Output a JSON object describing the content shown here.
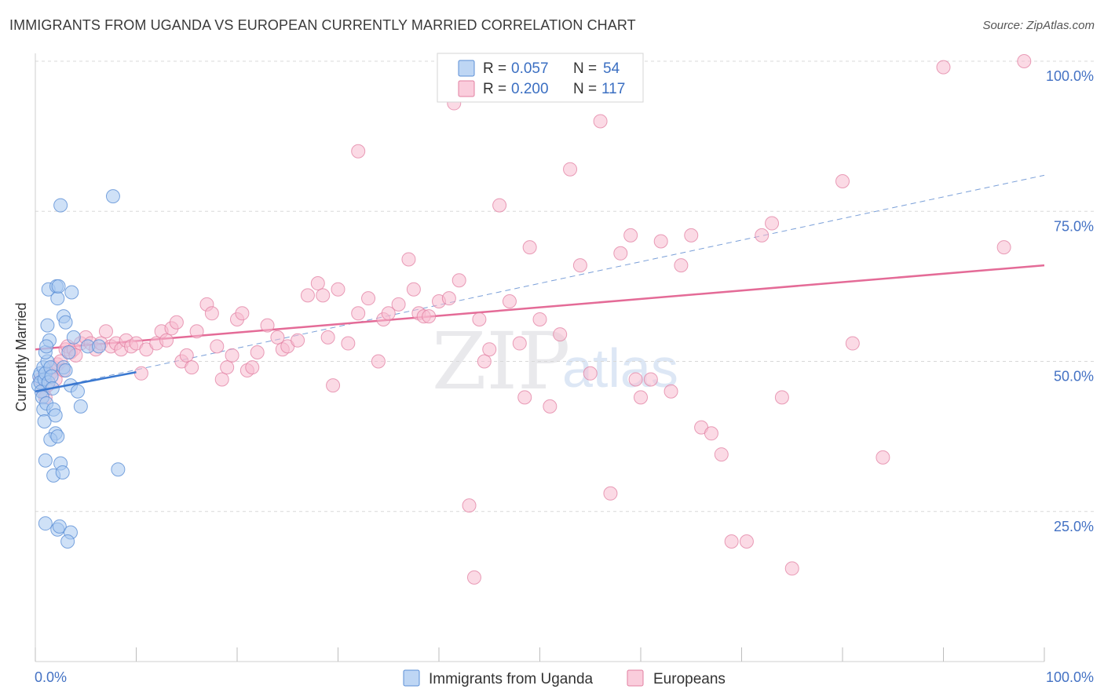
{
  "header": {
    "title": "IMMIGRANTS FROM UGANDA VS EUROPEAN CURRENTLY MARRIED CORRELATION CHART",
    "source": "Source: ZipAtlas.com"
  },
  "watermark": {
    "zip": "ZIP",
    "atlas": "atlas"
  },
  "colors": {
    "uganda_fill": "#a8c8f0",
    "uganda_stroke": "#5b8fd6",
    "uganda_line": "#3a78d0",
    "europe_fill": "#f8bcd0",
    "europe_stroke": "#e27fa1",
    "europe_line": "#e46b97",
    "dashed_line": "#7a9fd8",
    "grid": "#d8d8d8",
    "tick_text": "#4472c4"
  },
  "stats_box": {
    "rows": [
      {
        "r_label": "R = ",
        "r_value": "0.057",
        "n_label": "N = ",
        "n_value": "54"
      },
      {
        "r_label": "R = ",
        "r_value": "0.200",
        "n_label": "N = ",
        "n_value": "117"
      }
    ]
  },
  "chart_data": {
    "type": "scatter",
    "title": "IMMIGRANTS FROM UGANDA VS EUROPEAN CURRENTLY MARRIED CORRELATION CHART",
    "xlabel": "",
    "ylabel": "Currently Married",
    "xlim": [
      0,
      100
    ],
    "ylim": [
      0,
      100
    ],
    "x_tick_labels": [
      "0.0%",
      "100.0%"
    ],
    "y_ticks": [
      25,
      50,
      75,
      100
    ],
    "y_tick_labels": [
      "25.0%",
      "50.0%",
      "75.0%",
      "100.0%"
    ],
    "grid": true,
    "legend": [
      "Immigrants from Uganda",
      "Europeans"
    ],
    "series": [
      {
        "name": "Immigrants from Uganda",
        "r": 0.057,
        "n": 54,
        "trend": {
          "x": [
            0,
            10
          ],
          "y": [
            45.0,
            48.2
          ]
        },
        "trend_extended": {
          "x": [
            0,
            100
          ],
          "y": [
            45.0,
            81.0
          ]
        },
        "points": [
          [
            0.3,
            46
          ],
          [
            0.4,
            47.5
          ],
          [
            0.5,
            48
          ],
          [
            0.5,
            46.5
          ],
          [
            0.6,
            45
          ],
          [
            0.7,
            44
          ],
          [
            0.8,
            49
          ],
          [
            0.9,
            47
          ],
          [
            1.0,
            48
          ],
          [
            1.2,
            50
          ],
          [
            1.0,
            51.5
          ],
          [
            0.8,
            42
          ],
          [
            0.9,
            40
          ],
          [
            1.1,
            43
          ],
          [
            1.3,
            46.5
          ],
          [
            1.4,
            53.5
          ],
          [
            1.1,
            52.5
          ],
          [
            1.2,
            56
          ],
          [
            1.3,
            62
          ],
          [
            1.5,
            49
          ],
          [
            1.6,
            47.5
          ],
          [
            1.7,
            45.5
          ],
          [
            1.8,
            42
          ],
          [
            2.0,
            38
          ],
          [
            1.5,
            37
          ],
          [
            2.2,
            37.5
          ],
          [
            1.8,
            31
          ],
          [
            2.5,
            33
          ],
          [
            2.7,
            31.5
          ],
          [
            1.0,
            33.5
          ],
          [
            1.0,
            23
          ],
          [
            2.2,
            22
          ],
          [
            2.4,
            22.5
          ],
          [
            3.5,
            21.5
          ],
          [
            3.2,
            20
          ],
          [
            2.0,
            41
          ],
          [
            2.1,
            62.5
          ],
          [
            2.2,
            60.5
          ],
          [
            2.3,
            62.5
          ],
          [
            2.8,
            57.5
          ],
          [
            3.0,
            56.5
          ],
          [
            3.3,
            51.5
          ],
          [
            3.5,
            46
          ],
          [
            3.6,
            61.5
          ],
          [
            3.8,
            54
          ],
          [
            4.2,
            45
          ],
          [
            4.5,
            42.5
          ],
          [
            2.5,
            76
          ],
          [
            7.7,
            77.5
          ],
          [
            8.2,
            32
          ],
          [
            5.2,
            52.5
          ],
          [
            6.3,
            52.5
          ],
          [
            2.8,
            49
          ],
          [
            3.0,
            48.5
          ]
        ]
      },
      {
        "name": "Europeans",
        "r": 0.2,
        "n": 117,
        "trend": {
          "x": [
            0,
            100
          ],
          "y": [
            52.0,
            66.0
          ]
        },
        "points": [
          [
            0.5,
            47
          ],
          [
            0.8,
            45
          ],
          [
            1.0,
            44
          ],
          [
            1.2,
            46
          ],
          [
            1.5,
            48
          ],
          [
            1.8,
            49
          ],
          [
            2.0,
            47
          ],
          [
            2.2,
            49.5
          ],
          [
            2.5,
            50
          ],
          [
            2.8,
            48.5
          ],
          [
            3.0,
            52
          ],
          [
            3.2,
            52.5
          ],
          [
            3.5,
            51.5
          ],
          [
            3.8,
            52
          ],
          [
            4.0,
            51
          ],
          [
            4.5,
            53
          ],
          [
            5.0,
            54
          ],
          [
            5.5,
            53
          ],
          [
            6.0,
            52
          ],
          [
            6.5,
            53
          ],
          [
            7.0,
            55
          ],
          [
            7.5,
            52.5
          ],
          [
            8.0,
            53
          ],
          [
            8.5,
            52
          ],
          [
            9.0,
            53.5
          ],
          [
            9.5,
            52.5
          ],
          [
            10.0,
            53
          ],
          [
            10.5,
            48
          ],
          [
            11.0,
            52
          ],
          [
            12.0,
            53
          ],
          [
            12.5,
            55
          ],
          [
            13.0,
            53.5
          ],
          [
            13.5,
            55.5
          ],
          [
            14.0,
            56.5
          ],
          [
            14.5,
            50
          ],
          [
            15.0,
            51
          ],
          [
            15.5,
            49
          ],
          [
            16.0,
            55
          ],
          [
            17.0,
            59.5
          ],
          [
            17.5,
            58
          ],
          [
            18.0,
            52.5
          ],
          [
            18.5,
            47
          ],
          [
            19.0,
            49
          ],
          [
            19.5,
            51
          ],
          [
            20.0,
            57
          ],
          [
            20.5,
            58
          ],
          [
            21.0,
            48.5
          ],
          [
            21.5,
            49
          ],
          [
            22.0,
            51.5
          ],
          [
            23.0,
            56
          ],
          [
            24.0,
            54
          ],
          [
            24.5,
            52
          ],
          [
            25.0,
            52.5
          ],
          [
            26.0,
            53.5
          ],
          [
            27.0,
            61
          ],
          [
            28.0,
            63
          ],
          [
            28.5,
            61
          ],
          [
            29.0,
            54
          ],
          [
            29.5,
            46
          ],
          [
            30.0,
            62
          ],
          [
            31.0,
            53
          ],
          [
            32.0,
            58
          ],
          [
            33.0,
            60.5
          ],
          [
            34.0,
            50
          ],
          [
            34.5,
            57
          ],
          [
            35.0,
            58
          ],
          [
            36.0,
            59.5
          ],
          [
            37.0,
            67
          ],
          [
            37.5,
            62
          ],
          [
            38.0,
            58
          ],
          [
            38.5,
            57.5
          ],
          [
            39.0,
            57.5
          ],
          [
            40.0,
            60
          ],
          [
            41.0,
            60.5
          ],
          [
            42.0,
            63.5
          ],
          [
            43.0,
            26
          ],
          [
            43.5,
            14
          ],
          [
            44.0,
            57
          ],
          [
            44.5,
            50
          ],
          [
            45.0,
            52
          ],
          [
            46.0,
            76
          ],
          [
            47.0,
            60
          ],
          [
            48.0,
            53
          ],
          [
            48.5,
            44
          ],
          [
            49.0,
            69
          ],
          [
            50.0,
            57
          ],
          [
            51.0,
            42.5
          ],
          [
            52.0,
            54.5
          ],
          [
            53.0,
            82
          ],
          [
            54.0,
            66
          ],
          [
            55.0,
            48
          ],
          [
            56.0,
            90
          ],
          [
            57.0,
            28
          ],
          [
            58.0,
            68
          ],
          [
            59.0,
            71
          ],
          [
            59.5,
            47
          ],
          [
            60.0,
            44
          ],
          [
            61.0,
            47
          ],
          [
            62.0,
            70
          ],
          [
            63.0,
            45
          ],
          [
            64.0,
            66
          ],
          [
            65.0,
            71
          ],
          [
            66.0,
            39
          ],
          [
            67.0,
            38
          ],
          [
            68.0,
            34.5
          ],
          [
            69.0,
            20
          ],
          [
            70.5,
            20
          ],
          [
            72.0,
            71
          ],
          [
            73.0,
            73
          ],
          [
            74.0,
            44
          ],
          [
            75.0,
            15.5
          ],
          [
            80.0,
            80
          ],
          [
            81.0,
            53
          ],
          [
            84.0,
            34
          ],
          [
            90.0,
            99
          ],
          [
            96.0,
            69
          ],
          [
            98.0,
            100
          ],
          [
            32.0,
            85
          ],
          [
            41.5,
            93
          ]
        ]
      }
    ]
  },
  "legend": {
    "items": [
      {
        "label": "Immigrants from Uganda"
      },
      {
        "label": "Europeans"
      }
    ]
  }
}
